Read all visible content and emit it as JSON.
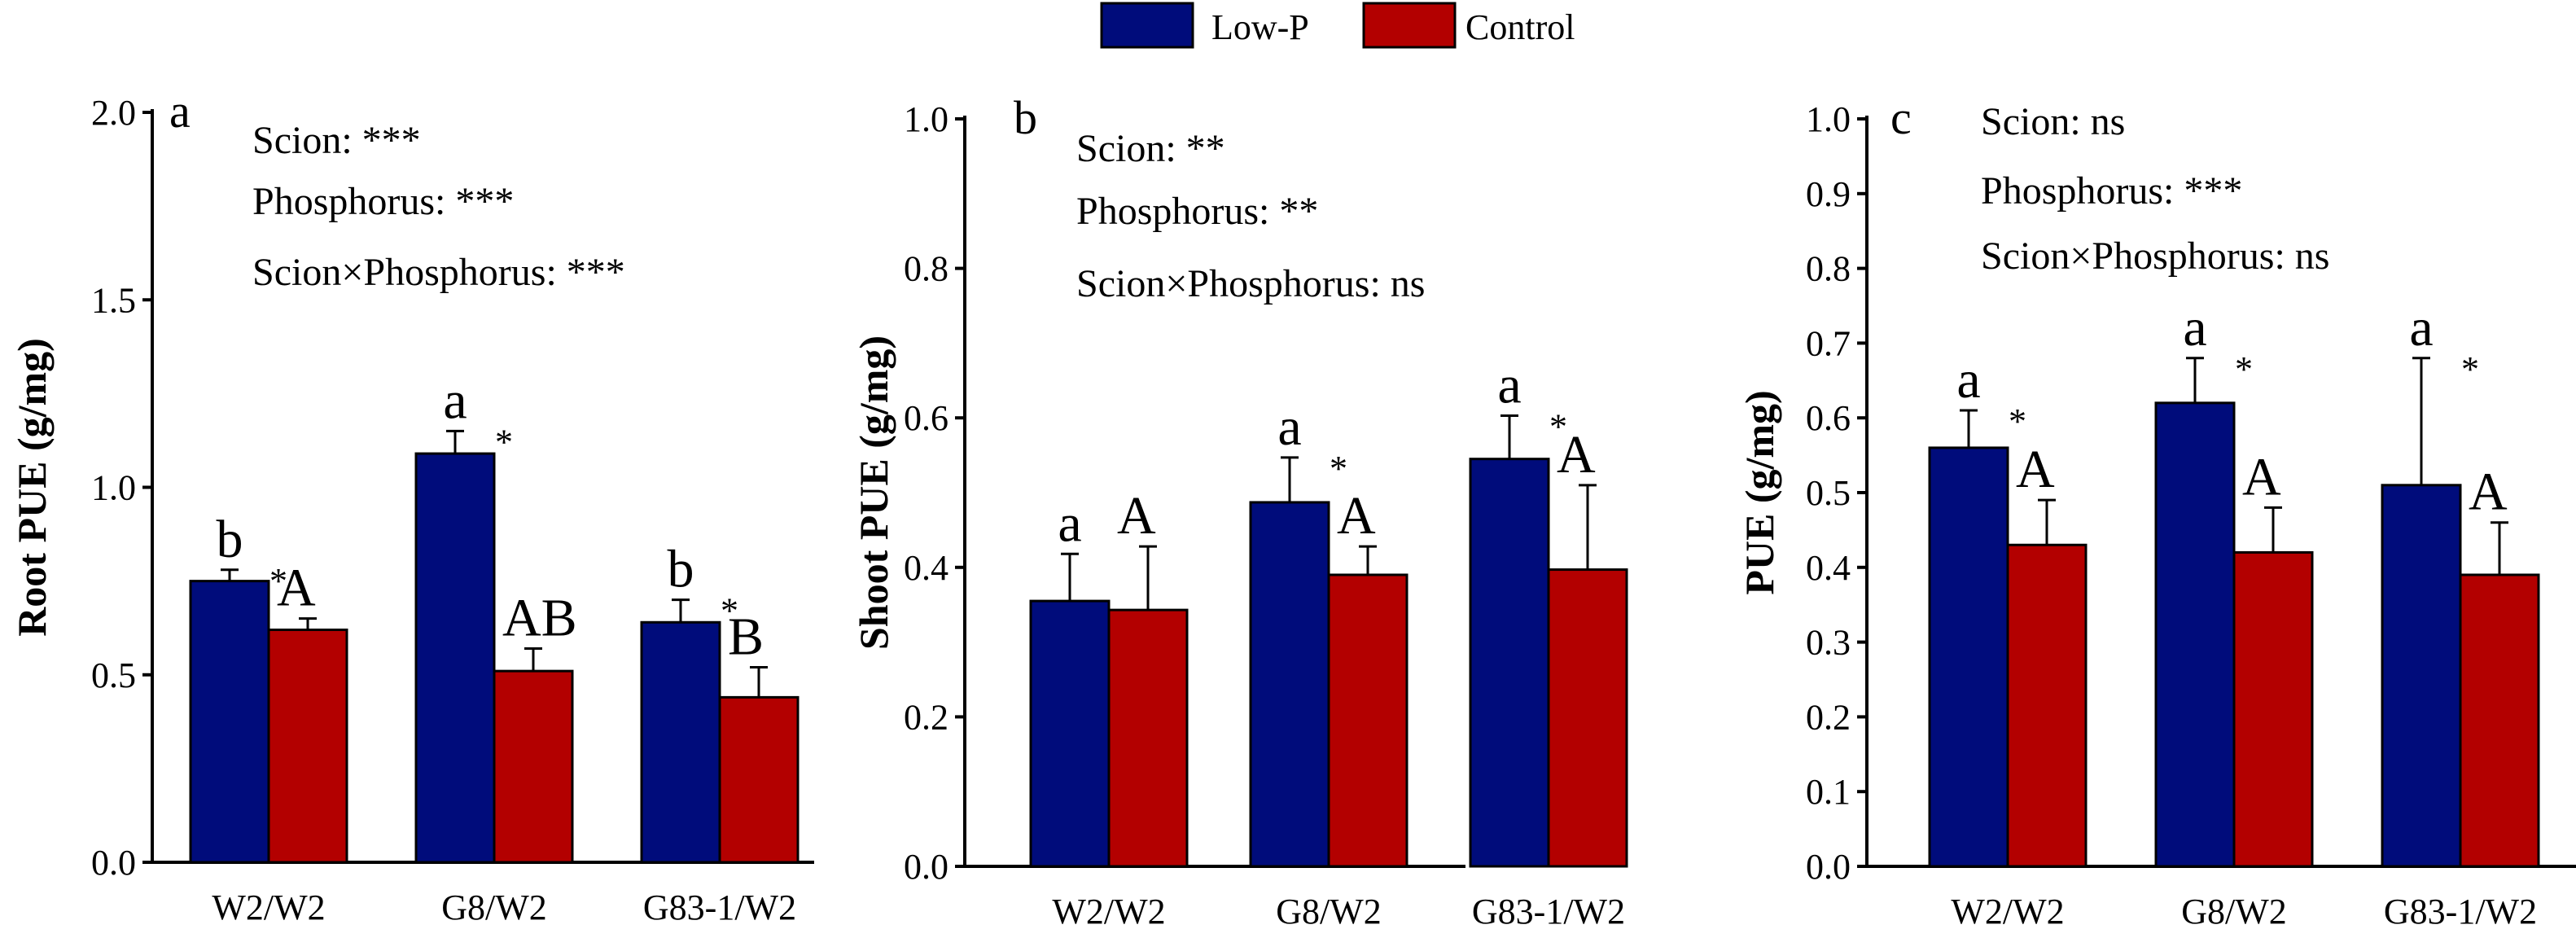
{
  "legend": {
    "items": [
      {
        "label": "Low-P",
        "color": "#000c7b"
      },
      {
        "label": "Control",
        "color": "#b30000"
      }
    ]
  },
  "colors": {
    "lowp": "#000c7b",
    "control": "#b30000",
    "axis": "#000000"
  },
  "chart_data": [
    {
      "type": "bar",
      "panel": "a",
      "ylabel": "Root PUE (g/mg)",
      "ylim": [
        0,
        2.0
      ],
      "yticks": [
        "0.0",
        "0.5",
        "1.0",
        "1.5",
        "2.0"
      ],
      "categories": [
        "W2/W2",
        "G8/W2",
        "G83-1/W2"
      ],
      "series": [
        {
          "name": "Low-P",
          "values": [
            0.75,
            1.09,
            0.64
          ],
          "errors": [
            0.03,
            0.06,
            0.06
          ],
          "labels": [
            "b",
            "a",
            "b"
          ]
        },
        {
          "name": "Control",
          "values": [
            0.62,
            0.51,
            0.44
          ],
          "errors": [
            0.03,
            0.06,
            0.08
          ],
          "labels": [
            "A",
            "AB",
            "B"
          ]
        }
      ],
      "stars": [
        "*",
        "*",
        "*"
      ],
      "stats": [
        "Scion: ***",
        "Phosphorus: ***",
        "Scion×Phosphorus: ***"
      ]
    },
    {
      "type": "bar",
      "panel": "b",
      "ylabel": "Shoot PUE (g/mg)",
      "ylim": [
        0,
        1.0
      ],
      "yticks": [
        "0.0",
        "0.2",
        "0.4",
        "0.6",
        "0.8",
        "1.0"
      ],
      "categories": [
        "W2/W2",
        "G8/W2",
        "G83-1/W2"
      ],
      "series": [
        {
          "name": "Low-P",
          "values": [
            0.355,
            0.487,
            0.545
          ],
          "errors": [
            0.063,
            0.06,
            0.058
          ],
          "labels": [
            "a",
            "a",
            "a"
          ]
        },
        {
          "name": "Control",
          "values": [
            0.343,
            0.39,
            0.397
          ],
          "errors": [
            0.085,
            0.038,
            0.113
          ],
          "labels": [
            "A",
            "A",
            "A"
          ]
        }
      ],
      "stars": [
        "",
        "*",
        "*"
      ],
      "stats": [
        "Scion: **",
        "Phosphorus: **",
        "Scion×Phosphorus: ns"
      ]
    },
    {
      "type": "bar",
      "panel": "c",
      "ylabel": "PUE (g/mg)",
      "ylim": [
        0,
        1.0
      ],
      "yticks": [
        "0.0",
        "0.1",
        "0.2",
        "0.3",
        "0.4",
        "0.5",
        "0.6",
        "0.7",
        "0.8",
        "0.9",
        "1.0"
      ],
      "categories": [
        "W2/W2",
        "G8/W2",
        "G83-1/W2"
      ],
      "series": [
        {
          "name": "Low-P",
          "values": [
            0.56,
            0.62,
            0.51
          ],
          "errors": [
            0.05,
            0.06,
            0.17
          ],
          "labels": [
            "a",
            "a",
            "a"
          ]
        },
        {
          "name": "Control",
          "values": [
            0.43,
            0.42,
            0.39
          ],
          "errors": [
            0.06,
            0.06,
            0.07
          ],
          "labels": [
            "A",
            "A",
            "A"
          ]
        }
      ],
      "stars": [
        "*",
        "*",
        "*"
      ],
      "stats": [
        "Scion: ns",
        "Phosphorus: ***",
        "Scion×Phosphorus: ns"
      ]
    }
  ]
}
